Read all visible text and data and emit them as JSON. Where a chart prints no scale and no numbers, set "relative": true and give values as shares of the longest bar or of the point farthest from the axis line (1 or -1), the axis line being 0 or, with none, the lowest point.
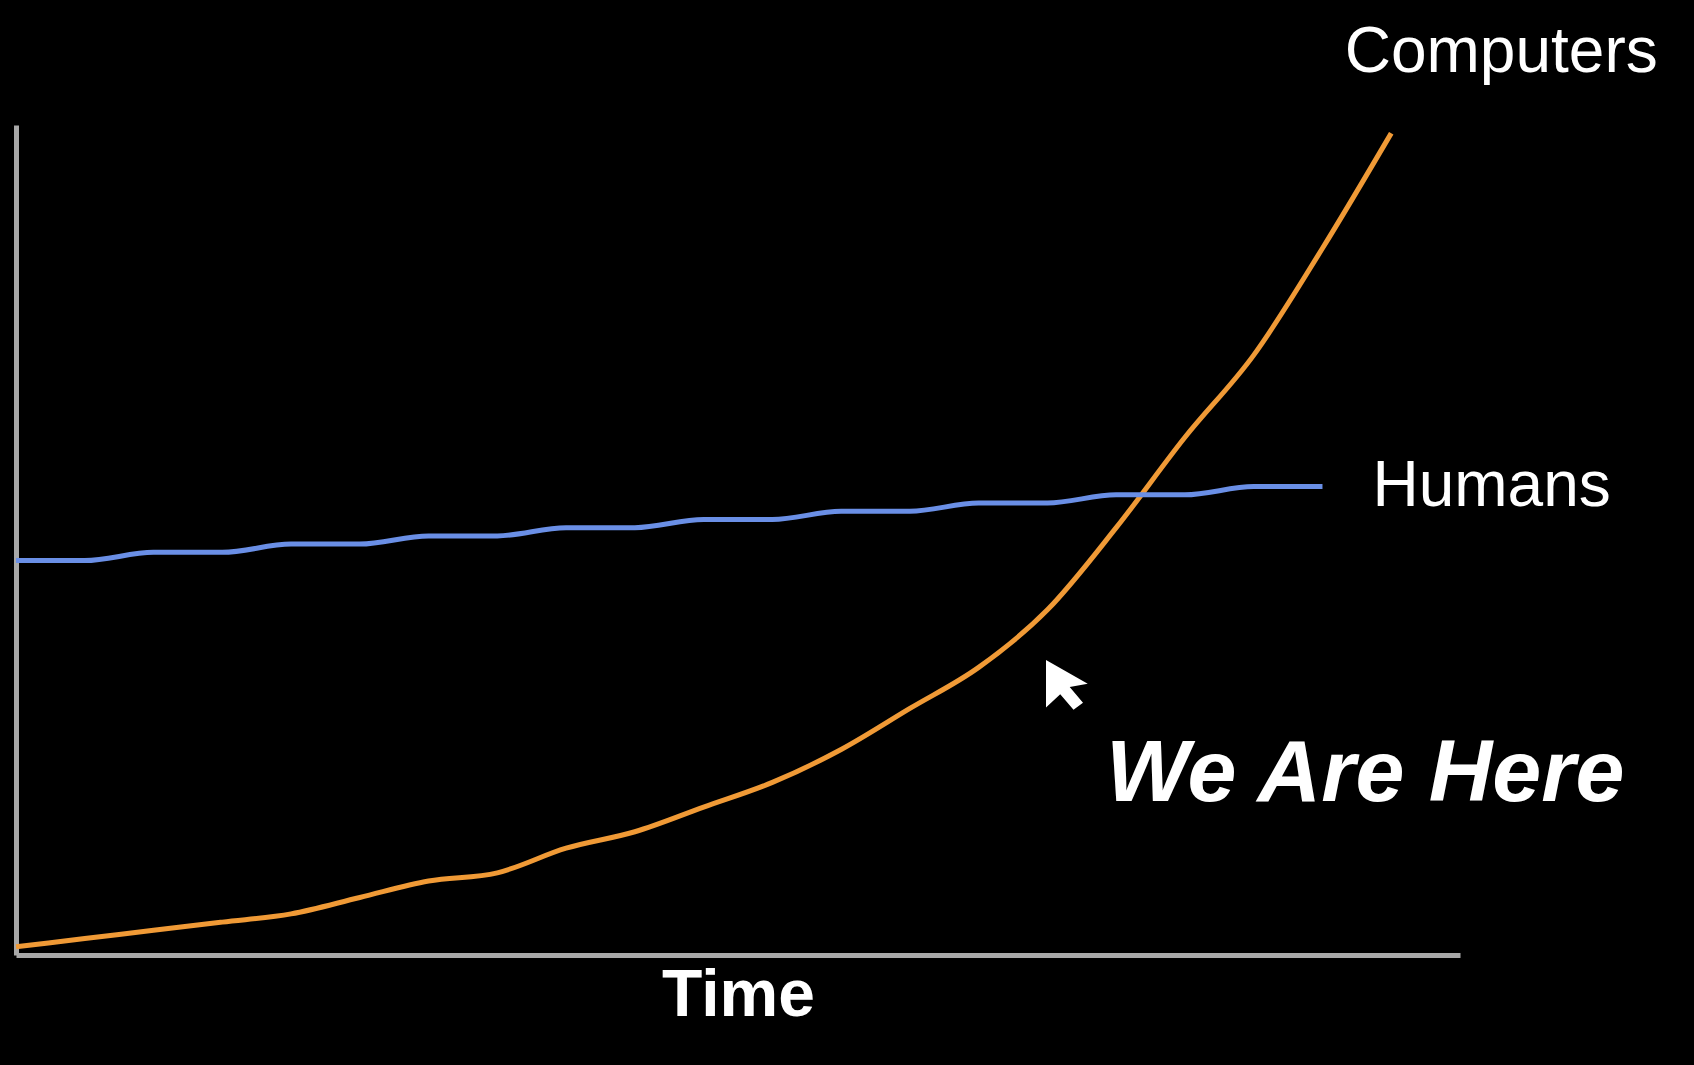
{
  "chart_data": {
    "type": "line",
    "relative": true,
    "xlabel": "Time",
    "categories": [
      null,
      null,
      null,
      null,
      null,
      null,
      null,
      null,
      null,
      null,
      null,
      null,
      null,
      null,
      null,
      null,
      null,
      null,
      null,
      null,
      null,
      null
    ],
    "series": [
      {
        "name": "Computers",
        "color": "#f09a36",
        "values": [
          0.01,
          0.02,
          0.03,
          0.04,
          0.05,
          0.07,
          0.09,
          0.1,
          0.13,
          0.15,
          0.18,
          0.21,
          0.25,
          0.3,
          0.35,
          0.42,
          0.52,
          0.63,
          0.73,
          0.86,
          1,
          null
        ]
      },
      {
        "name": "Humans",
        "color": "#6a8fe6",
        "values": [
          0.48,
          0.48,
          0.49,
          0.49,
          0.5,
          0.5,
          0.51,
          0.51,
          0.52,
          0.52,
          0.53,
          0.53,
          0.54,
          0.54,
          0.55,
          0.55,
          0.56,
          0.56,
          0.57,
          0.57,
          null,
          null
        ]
      }
    ],
    "annotations": [
      "We Are Here"
    ],
    "marker": "none",
    "line_style": "solid"
  }
}
